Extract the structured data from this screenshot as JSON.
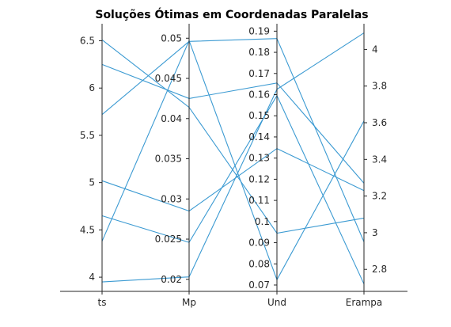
{
  "chart_data": {
    "type": "line",
    "title": "Soluções Ótimas em Coordenadas Paralelas",
    "axes": [
      {
        "label": "ts",
        "range": [
          3.85,
          6.68
        ],
        "ticks": [
          "4",
          "4.5",
          "5",
          "5.5",
          "6",
          "6.5"
        ],
        "tick_values": [
          4,
          4.5,
          5,
          5.5,
          6,
          6.5
        ],
        "tick_side": "left"
      },
      {
        "label": "Mp",
        "range": [
          0.0185,
          0.0518
        ],
        "ticks": [
          "0.02",
          "0.025",
          "0.03",
          "0.035",
          "0.04",
          "0.045",
          "0.05"
        ],
        "tick_values": [
          0.02,
          0.025,
          0.03,
          0.035,
          0.04,
          0.045,
          0.05
        ],
        "tick_side": "left"
      },
      {
        "label": "Und",
        "range": [
          0.067,
          0.1935
        ],
        "ticks": [
          "0.07",
          "0.08",
          "0.09",
          "0.1",
          "0.11",
          "0.12",
          "0.13",
          "0.14",
          "0.15",
          "0.16",
          "0.17",
          "0.18",
          "0.19"
        ],
        "tick_values": [
          0.07,
          0.08,
          0.09,
          0.1,
          0.11,
          0.12,
          0.13,
          0.14,
          0.15,
          0.16,
          0.17,
          0.18,
          0.19
        ],
        "tick_side": "left"
      },
      {
        "label": "Erampa",
        "range": [
          2.68,
          4.14
        ],
        "ticks": [
          "2.8",
          "3",
          "3.2",
          "3.4",
          "3.6",
          "3.8",
          "4"
        ],
        "tick_values": [
          2.8,
          3,
          3.2,
          3.4,
          3.6,
          3.8,
          4
        ],
        "tick_side": "right"
      }
    ],
    "series": [
      {
        "values": [
          6.51,
          0.0414,
          0.0945,
          3.08
        ]
      },
      {
        "values": [
          5.72,
          0.0496,
          0.1865,
          2.95
        ]
      },
      {
        "values": [
          5.02,
          0.0285,
          0.1345,
          3.23
        ]
      },
      {
        "values": [
          4.65,
          0.0246,
          0.1595,
          2.72
        ]
      },
      {
        "values": [
          4.38,
          0.0497,
          0.0725,
          3.61
        ]
      },
      {
        "values": [
          3.95,
          0.0203,
          0.1625,
          4.09
        ]
      },
      {
        "values": [
          6.25,
          0.0425,
          0.1655,
          3.27
        ]
      }
    ],
    "line_color": "#3b9ad2",
    "grid": false,
    "legend": "none"
  }
}
